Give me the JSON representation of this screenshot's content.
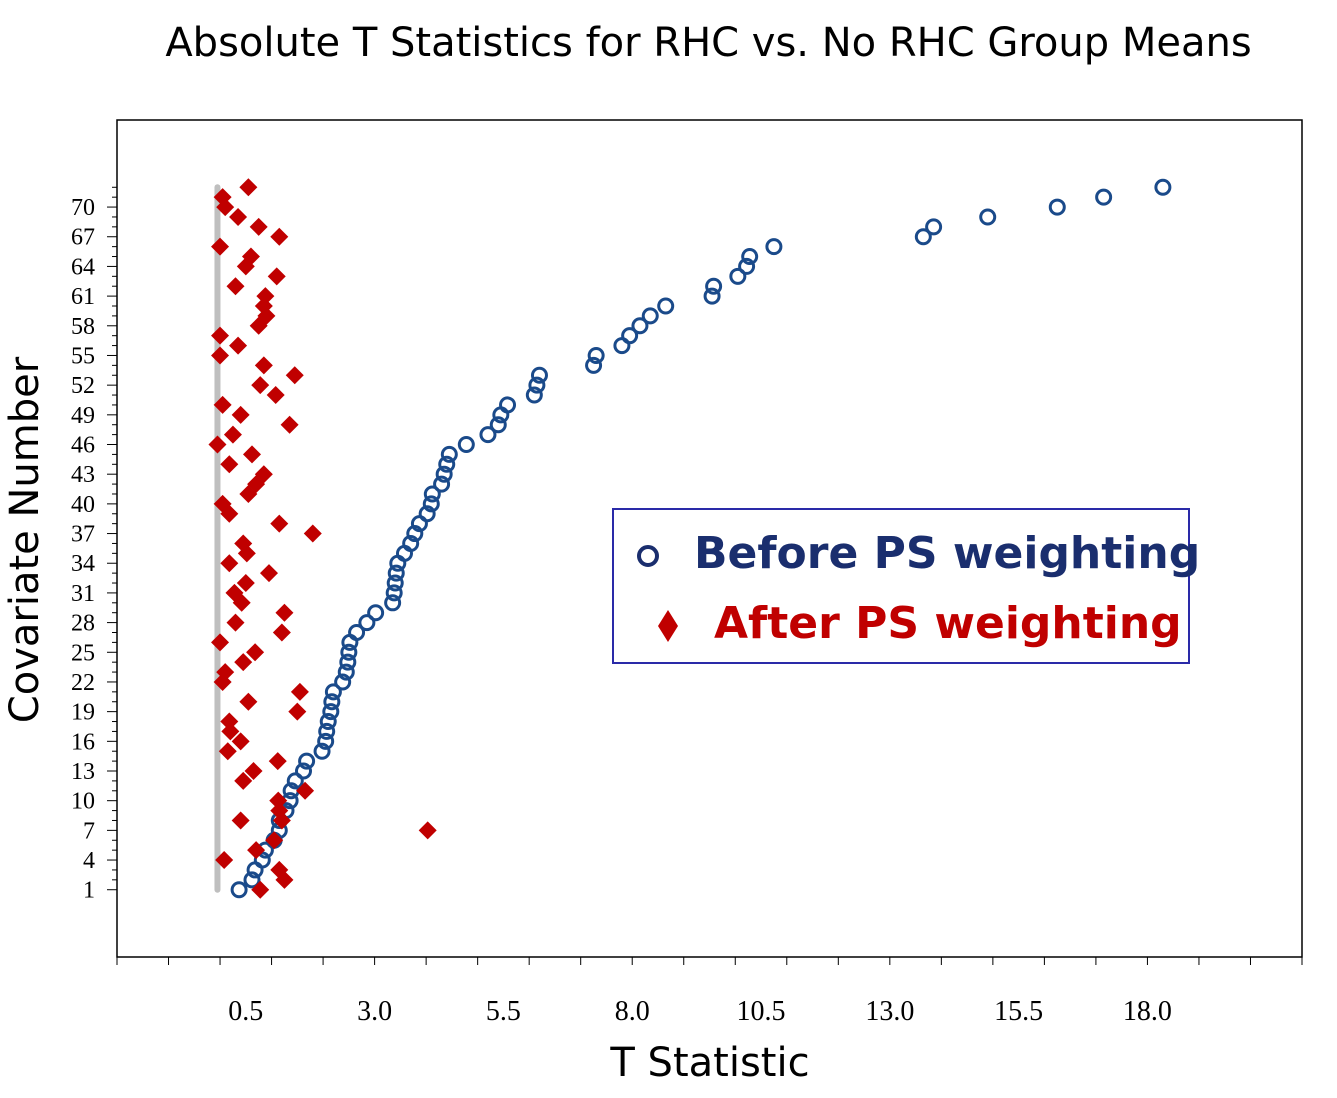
{
  "chart_data": {
    "type": "scatter",
    "title": "Absolute T Statistics for RHC vs. No RHC Group Means",
    "xlabel": "T Statistic",
    "ylabel": "Covariate Number",
    "xlim": [
      -2.0,
      21.0
    ],
    "ylim": [
      -5.8,
      78.8
    ],
    "x_ticks": [
      "0.5",
      "3.0",
      "5.5",
      "8.0",
      "10.5",
      "13.0",
      "15.5",
      "18.0"
    ],
    "y_ticks": [
      "1",
      "4",
      "7",
      "10",
      "13",
      "16",
      "19",
      "22",
      "25",
      "28",
      "31",
      "34",
      "37",
      "40",
      "43",
      "46",
      "49",
      "52",
      "55",
      "58",
      "61",
      "64",
      "67",
      "70"
    ],
    "reference_line": {
      "x": -0.05,
      "y_from": 1,
      "y_to": 72
    },
    "legend_placement": "center-right",
    "series": [
      {
        "name": "Before PS weighting",
        "marker": "circle",
        "color": "#1a4a8a",
        "points": [
          [
            0.37,
            1
          ],
          [
            0.62,
            2
          ],
          [
            0.68,
            3
          ],
          [
            0.82,
            4
          ],
          [
            0.88,
            5
          ],
          [
            1.05,
            6
          ],
          [
            1.15,
            7
          ],
          [
            1.15,
            8
          ],
          [
            1.28,
            9
          ],
          [
            1.36,
            10
          ],
          [
            1.38,
            11
          ],
          [
            1.46,
            12
          ],
          [
            1.62,
            13
          ],
          [
            1.68,
            14
          ],
          [
            1.98,
            15
          ],
          [
            2.05,
            16
          ],
          [
            2.07,
            17
          ],
          [
            2.1,
            18
          ],
          [
            2.15,
            19
          ],
          [
            2.17,
            20
          ],
          [
            2.2,
            21
          ],
          [
            2.38,
            22
          ],
          [
            2.45,
            23
          ],
          [
            2.48,
            24
          ],
          [
            2.5,
            25
          ],
          [
            2.52,
            26
          ],
          [
            2.65,
            27
          ],
          [
            2.85,
            28
          ],
          [
            3.02,
            29
          ],
          [
            3.35,
            30
          ],
          [
            3.38,
            31
          ],
          [
            3.4,
            32
          ],
          [
            3.42,
            33
          ],
          [
            3.45,
            34
          ],
          [
            3.58,
            35
          ],
          [
            3.7,
            36
          ],
          [
            3.78,
            37
          ],
          [
            3.87,
            38
          ],
          [
            4.02,
            39
          ],
          [
            4.1,
            40
          ],
          [
            4.12,
            41
          ],
          [
            4.3,
            42
          ],
          [
            4.35,
            43
          ],
          [
            4.4,
            44
          ],
          [
            4.45,
            45
          ],
          [
            4.78,
            46
          ],
          [
            5.2,
            47
          ],
          [
            5.4,
            48
          ],
          [
            5.45,
            49
          ],
          [
            5.58,
            50
          ],
          [
            6.1,
            51
          ],
          [
            6.15,
            52
          ],
          [
            6.2,
            53
          ],
          [
            7.25,
            54
          ],
          [
            7.3,
            55
          ],
          [
            7.8,
            56
          ],
          [
            7.95,
            57
          ],
          [
            8.15,
            58
          ],
          [
            8.35,
            59
          ],
          [
            8.65,
            60
          ],
          [
            9.55,
            61
          ],
          [
            9.58,
            62
          ],
          [
            10.05,
            63
          ],
          [
            10.22,
            64
          ],
          [
            10.28,
            65
          ],
          [
            10.75,
            66
          ],
          [
            13.65,
            67
          ],
          [
            13.85,
            68
          ],
          [
            14.9,
            69
          ],
          [
            16.25,
            70
          ],
          [
            17.15,
            71
          ],
          [
            18.3,
            72
          ]
        ]
      },
      {
        "name": "After PS weighting",
        "marker": "diamond",
        "color": "#c00000",
        "points": [
          [
            0.78,
            1
          ],
          [
            1.25,
            2
          ],
          [
            1.15,
            3
          ],
          [
            0.08,
            4
          ],
          [
            0.7,
            5
          ],
          [
            1.05,
            6
          ],
          [
            4.03,
            7
          ],
          [
            1.2,
            8
          ],
          [
            0.4,
            8
          ],
          [
            1.15,
            9
          ],
          [
            1.13,
            10
          ],
          [
            1.65,
            11
          ],
          [
            0.45,
            12
          ],
          [
            0.65,
            13
          ],
          [
            1.12,
            14
          ],
          [
            0.15,
            15
          ],
          [
            0.4,
            16
          ],
          [
            0.2,
            17
          ],
          [
            0.18,
            18
          ],
          [
            1.5,
            19
          ],
          [
            0.55,
            20
          ],
          [
            1.55,
            21
          ],
          [
            0.05,
            22
          ],
          [
            0.1,
            23
          ],
          [
            0.45,
            24
          ],
          [
            0.68,
            25
          ],
          [
            0.0,
            26
          ],
          [
            1.2,
            27
          ],
          [
            0.3,
            28
          ],
          [
            1.25,
            29
          ],
          [
            0.42,
            30
          ],
          [
            0.28,
            31
          ],
          [
            0.5,
            32
          ],
          [
            0.95,
            33
          ],
          [
            0.18,
            34
          ],
          [
            0.52,
            35
          ],
          [
            0.45,
            36
          ],
          [
            1.8,
            37
          ],
          [
            1.15,
            38
          ],
          [
            0.18,
            39
          ],
          [
            0.05,
            40
          ],
          [
            0.55,
            41
          ],
          [
            0.7,
            42
          ],
          [
            0.85,
            43
          ],
          [
            0.18,
            44
          ],
          [
            0.62,
            45
          ],
          [
            -0.05,
            46
          ],
          [
            0.25,
            47
          ],
          [
            1.35,
            48
          ],
          [
            0.4,
            49
          ],
          [
            0.05,
            50
          ],
          [
            1.08,
            51
          ],
          [
            0.78,
            52
          ],
          [
            1.45,
            53
          ],
          [
            0.85,
            54
          ],
          [
            0.0,
            55
          ],
          [
            0.35,
            56
          ],
          [
            0.0,
            57
          ],
          [
            0.75,
            58
          ],
          [
            0.9,
            59
          ],
          [
            0.85,
            60
          ],
          [
            0.88,
            61
          ],
          [
            0.3,
            62
          ],
          [
            1.1,
            63
          ],
          [
            0.5,
            64
          ],
          [
            0.6,
            65
          ],
          [
            0.0,
            66
          ],
          [
            1.15,
            67
          ],
          [
            0.75,
            68
          ],
          [
            0.35,
            69
          ],
          [
            0.1,
            70
          ],
          [
            0.05,
            71
          ],
          [
            0.55,
            72
          ]
        ]
      }
    ]
  }
}
